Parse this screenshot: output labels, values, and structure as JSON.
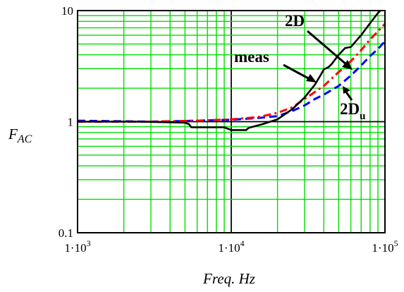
{
  "chart_data": {
    "type": "line",
    "xscale": "log",
    "yscale": "log",
    "xlim": [
      1000,
      100000
    ],
    "ylim": [
      0.1,
      10
    ],
    "xlabel": "Freq. Hz",
    "ylabel_main": "F",
    "ylabel_sub": "AC",
    "x_ticks": [
      {
        "base": "1·10",
        "exp": "3"
      },
      {
        "base": "1·10",
        "exp": "4"
      },
      {
        "base": "1·10",
        "exp": "5"
      }
    ],
    "y_ticks": [
      "0.1",
      "1",
      "10"
    ],
    "grid": true,
    "colors": {
      "grid": "#00dd00",
      "frame": "#000000",
      "meas": "#000000",
      "2D": "#ff0000",
      "2Du": "#0000ff"
    },
    "series": [
      {
        "name": "meas",
        "style": "solid",
        "x": [
          1000,
          2500,
          5000,
          5300,
          5500,
          9000,
          10000,
          11000,
          12500,
          13000,
          16000,
          20000,
          25000,
          30000,
          35000,
          38000,
          40000,
          43000,
          45000,
          50000,
          55000,
          60000,
          70000,
          80000,
          90000,
          100000
        ],
        "y": [
          1.0,
          1.0,
          0.98,
          0.95,
          0.89,
          0.89,
          0.84,
          0.84,
          0.84,
          0.88,
          0.95,
          1.05,
          1.3,
          1.65,
          2.15,
          2.6,
          2.95,
          3.1,
          3.3,
          4.0,
          4.6,
          4.7,
          6.0,
          7.7,
          9.5,
          11.0
        ]
      },
      {
        "name": "2D",
        "style": "dash-dot",
        "x": [
          1000,
          3000,
          6000,
          10000,
          15000,
          20000,
          25000,
          30000,
          40000,
          50000,
          60000,
          70000,
          80000,
          90000,
          100000
        ],
        "y": [
          1.0,
          1.0,
          1.02,
          1.05,
          1.1,
          1.2,
          1.35,
          1.6,
          2.1,
          2.8,
          3.5,
          4.4,
          5.5,
          6.5,
          7.6
        ]
      },
      {
        "name": "2Du",
        "style": "dashed",
        "x": [
          1000,
          3000,
          6000,
          10000,
          15000,
          20000,
          25000,
          30000,
          35000,
          40000,
          50000,
          60000,
          70000,
          80000,
          90000,
          100000
        ],
        "y": [
          1.02,
          1.0,
          1.02,
          1.04,
          1.08,
          1.12,
          1.25,
          1.4,
          1.6,
          1.75,
          2.1,
          2.6,
          3.2,
          3.9,
          4.5,
          5.3
        ]
      }
    ],
    "annotations": [
      {
        "text": "meas",
        "sub": ""
      },
      {
        "text": "2D",
        "sub": ""
      },
      {
        "text": "2D",
        "sub": "u"
      }
    ]
  }
}
